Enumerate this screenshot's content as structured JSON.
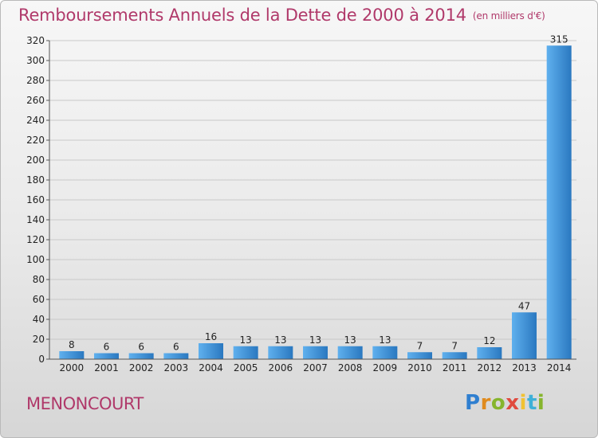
{
  "header": {
    "title": "Remboursements Annuels de la Dette de 2000 à 2014",
    "unit_note": "(en milliers d'€)"
  },
  "footer": {
    "place": "MENONCOURT",
    "brand": "Proxiti"
  },
  "chart_data": {
    "type": "bar",
    "title": "Remboursements Annuels de la Dette de 2000 à 2014",
    "xlabel": "",
    "ylabel": "",
    "ylim": [
      0,
      320
    ],
    "yticks": [
      0,
      20,
      40,
      60,
      80,
      100,
      120,
      140,
      160,
      180,
      200,
      220,
      240,
      260,
      280,
      300,
      320
    ],
    "categories": [
      "2000",
      "2001",
      "2002",
      "2003",
      "2004",
      "2005",
      "2006",
      "2007",
      "2008",
      "2009",
      "2010",
      "2011",
      "2012",
      "2013",
      "2014"
    ],
    "values": [
      8,
      6,
      6,
      6,
      16,
      13,
      13,
      13,
      13,
      13,
      7,
      7,
      12,
      47,
      315
    ],
    "grid": true,
    "bar_color": "#3f8fd6"
  }
}
